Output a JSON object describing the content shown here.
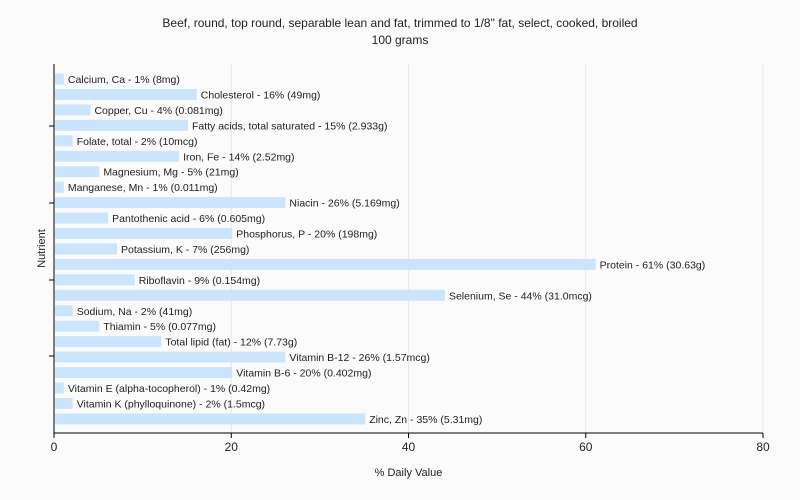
{
  "chart_data": {
    "type": "bar",
    "orientation": "horizontal",
    "title": "Beef, round, top round, separable lean and fat, trimmed to 1/8\" fat, select, cooked, broiled",
    "subtitle": "100 grams",
    "xlabel": "% Daily Value",
    "ylabel": "Nutrient",
    "xlim": [
      0,
      80
    ],
    "xticks": [
      0,
      20,
      40,
      60,
      80
    ],
    "grid": true,
    "legend": "none",
    "bar_color": "#cce5ff",
    "categories": [
      "Calcium, Ca",
      "Cholesterol",
      "Copper, Cu",
      "Fatty acids, total saturated",
      "Folate, total",
      "Iron, Fe",
      "Magnesium, Mg",
      "Manganese, Mn",
      "Niacin",
      "Pantothenic acid",
      "Phosphorus, P",
      "Potassium, K",
      "Protein",
      "Riboflavin",
      "Selenium, Se",
      "Sodium, Na",
      "Thiamin",
      "Total lipid (fat)",
      "Vitamin B-12",
      "Vitamin B-6",
      "Vitamin E (alpha-tocopherol)",
      "Vitamin K (phylloquinone)",
      "Zinc, Zn"
    ],
    "values": [
      1,
      16,
      4,
      15,
      2,
      14,
      5,
      1,
      26,
      6,
      20,
      7,
      61,
      9,
      44,
      2,
      5,
      12,
      26,
      20,
      1,
      2,
      35
    ],
    "labels": [
      "Calcium, Ca - 1% (8mg)",
      "Cholesterol - 16% (49mg)",
      "Copper, Cu - 4% (0.081mg)",
      "Fatty acids, total saturated - 15% (2.933g)",
      "Folate, total - 2% (10mcg)",
      "Iron, Fe - 14% (2.52mg)",
      "Magnesium, Mg - 5% (21mg)",
      "Manganese, Mn - 1% (0.011mg)",
      "Niacin - 26% (5.169mg)",
      "Pantothenic acid - 6% (0.605mg)",
      "Phosphorus, P - 20% (198mg)",
      "Potassium, K - 7% (256mg)",
      "Protein - 61% (30.63g)",
      "Riboflavin - 9% (0.154mg)",
      "Selenium, Se - 44% (31.0mcg)",
      "Sodium, Na - 2% (41mg)",
      "Thiamin - 5% (0.077mg)",
      "Total lipid (fat) - 12% (7.73g)",
      "Vitamin B-12 - 26% (1.57mcg)",
      "Vitamin B-6 - 20% (0.402mg)",
      "Vitamin E (alpha-tocopherol) - 1% (0.42mg)",
      "Vitamin K (phylloquinone) - 2% (1.5mcg)",
      "Zinc, Zn - 35% (5.31mg)"
    ]
  }
}
